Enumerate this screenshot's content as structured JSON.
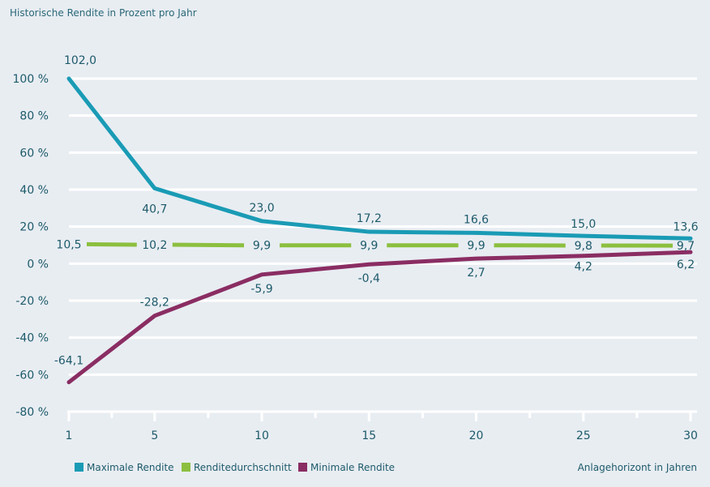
{
  "chart_data": {
    "type": "line",
    "title": "Historische Rendite in Prozent pro Jahr",
    "xlabel": "Anlagehorizont in Jahren",
    "ylabel": "",
    "x": [
      1,
      5,
      10,
      15,
      20,
      25,
      30
    ],
    "xticks": [
      "1",
      "5",
      "10",
      "15",
      "20",
      "25",
      "30"
    ],
    "xlim": [
      1,
      30
    ],
    "ylim": [
      -80,
      100
    ],
    "yticks": [
      "100 %",
      "80 %",
      "60 %",
      "40 %",
      "20 %",
      "0 %",
      "-20 %",
      "-40 %",
      "-60 %",
      "-80 %"
    ],
    "ytick_values": [
      100,
      80,
      60,
      40,
      20,
      0,
      -20,
      -40,
      -60,
      -80
    ],
    "grid": true,
    "legend_position": "bottom-left",
    "series": [
      {
        "name": "Maximale Rendite",
        "color": "#1a9bb5",
        "values": [
          102.0,
          40.7,
          23.0,
          17.2,
          16.6,
          15.0,
          13.6
        ],
        "labels": [
          "102,0",
          "40,7",
          "23,0",
          "17,2",
          "16,6",
          "15,0",
          "13,6"
        ],
        "style": "solid"
      },
      {
        "name": "Renditedurchschnitt",
        "color": "#8cbf3f",
        "values": [
          10.5,
          10.2,
          9.9,
          9.9,
          9.9,
          9.8,
          9.7
        ],
        "labels": [
          "10,5",
          "10,2",
          "9,9",
          "9,9",
          "9,9",
          "9,8",
          "9,7"
        ],
        "style": "segmented"
      },
      {
        "name": "Minimale Rendite",
        "color": "#8a2d63",
        "values": [
          -64.1,
          -28.2,
          -5.9,
          -0.4,
          2.7,
          4.2,
          6.2
        ],
        "labels": [
          "-64,1",
          "-28,2",
          "-5,9",
          "-0,4",
          "2,7",
          "4,2",
          "6,2"
        ],
        "style": "solid"
      }
    ]
  }
}
